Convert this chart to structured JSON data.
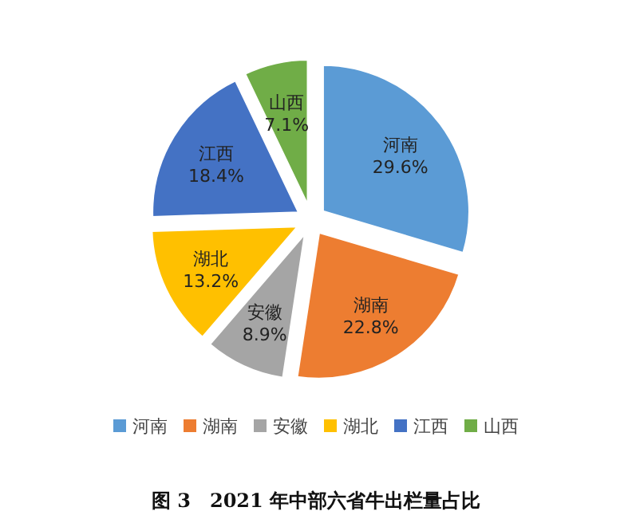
{
  "chart_data": {
    "type": "pie",
    "title": "图 3　2021 年中部六省牛出栏量占比",
    "categories": [
      "河南",
      "湖南",
      "安徽",
      "湖北",
      "江西",
      "山西"
    ],
    "values": [
      29.6,
      22.8,
      8.9,
      13.2,
      18.4,
      7.1
    ],
    "colors": [
      "#5b9bd5",
      "#ed7d31",
      "#a5a5a5",
      "#ffc000",
      "#4472c4",
      "#70ad47"
    ],
    "value_labels": [
      "29.6%",
      "22.8%",
      "8.9%",
      "13.2%",
      "18.4%",
      "7.1%"
    ],
    "legend": "bottom"
  }
}
